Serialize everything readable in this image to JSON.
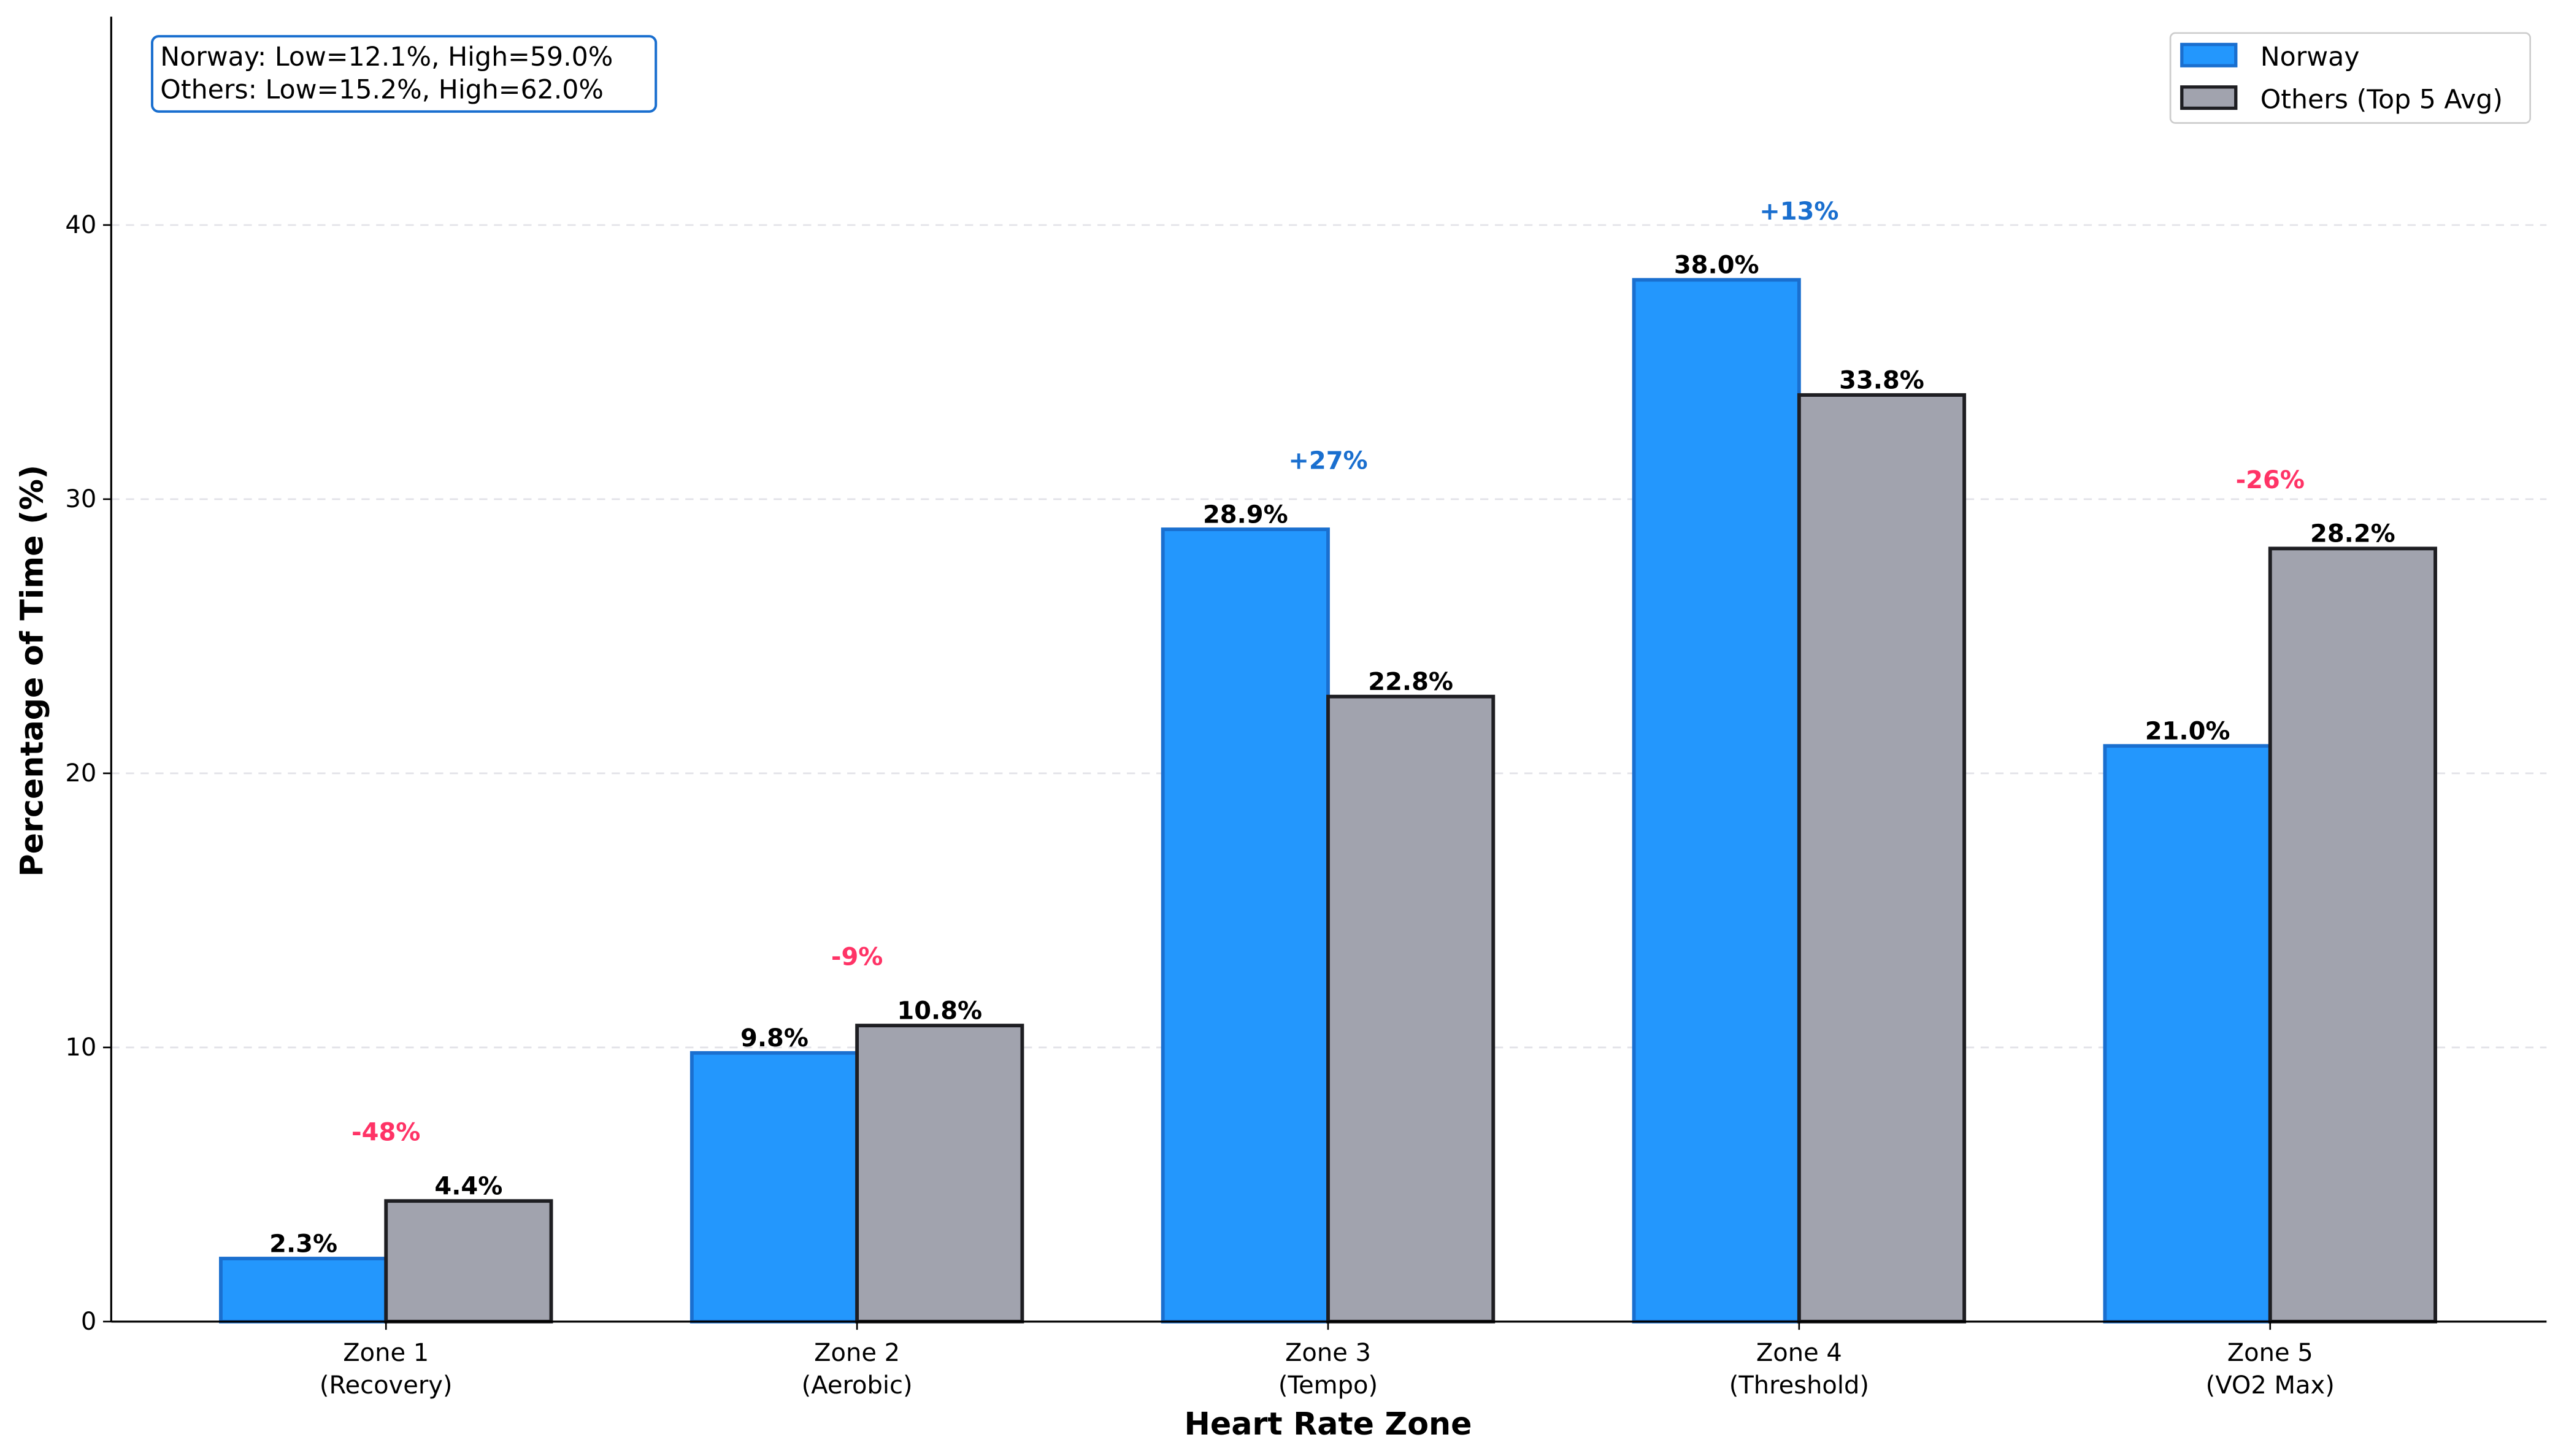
{
  "chart_data": {
    "type": "bar",
    "title": "",
    "xlabel": "Heart Rate Zone",
    "ylabel": "Percentage of Time (%)",
    "ylim": [
      0,
      47.6
    ],
    "yticks": [
      0,
      10,
      20,
      30,
      40
    ],
    "grid": "y dashed",
    "legend_placement": "top-right",
    "categories": [
      [
        "Zone 1",
        "(Recovery)"
      ],
      [
        "Zone 2",
        "(Aerobic)"
      ],
      [
        "Zone 3",
        "(Tempo)"
      ],
      [
        "Zone 4",
        "(Threshold)"
      ],
      [
        "Zone 5",
        "(VO2 Max)"
      ]
    ],
    "series": [
      {
        "name": "Norway",
        "values": [
          2.3,
          9.8,
          28.9,
          38.0,
          21.0
        ],
        "labels": [
          "2.3%",
          "9.8%",
          "28.9%",
          "38.0%",
          "21.0%"
        ],
        "color": "#2397fd",
        "edge": "#1a6fcf"
      },
      {
        "name": "Others (Top 5 Avg)",
        "values": [
          4.4,
          10.8,
          22.8,
          33.8,
          28.2
        ],
        "labels": [
          "4.4%",
          "10.8%",
          "22.8%",
          "33.8%",
          "28.2%"
        ],
        "color": "#a1a3ae",
        "edge": "#1e1e22"
      }
    ],
    "differences": [
      "-48%",
      "-9%",
      "+27%",
      "+13%",
      "-26%"
    ],
    "positive_color": "#1a6fcf",
    "negative_color": "#ff3366",
    "annotation": {
      "lines": [
        "Norway: Low=12.1%, High=59.0%",
        "Others: Low=15.2%, High=62.0%"
      ],
      "border_color": "#1a6fcf"
    }
  }
}
